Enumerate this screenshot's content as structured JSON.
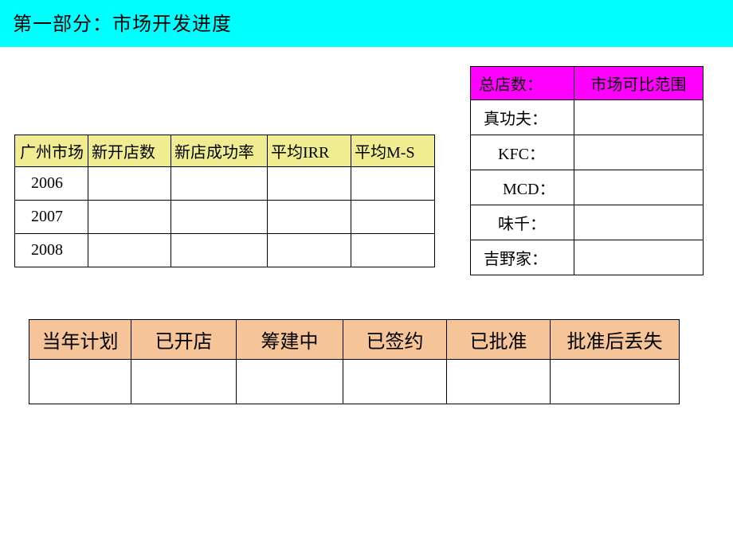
{
  "title": "第一部分：市场开发进度",
  "table1": {
    "headers": [
      "广州市场",
      "新开店数",
      "新店成功率",
      "平均IRR",
      "平均M-S"
    ],
    "rows": [
      {
        "year": "2006",
        "cells": [
          "",
          "",
          "",
          ""
        ]
      },
      {
        "year": "2007",
        "cells": [
          "",
          "",
          "",
          ""
        ]
      },
      {
        "year": "2008",
        "cells": [
          "",
          "",
          "",
          ""
        ]
      }
    ],
    "header_bg": "#f0ed91",
    "border_color": "#000000",
    "font_size": 20
  },
  "table2": {
    "headers": [
      "总店数：",
      "市场可比范围"
    ],
    "rows": [
      {
        "label": "真功夫：",
        "value": ""
      },
      {
        "label": "KFC：",
        "value": ""
      },
      {
        "label": "MCD：",
        "value": ""
      },
      {
        "label": "味千：",
        "value": ""
      },
      {
        "label": "吉野家：",
        "value": ""
      }
    ],
    "header_bg": "#ff00ff",
    "border_color": "#000000",
    "font_size": 20
  },
  "table3": {
    "headers": [
      "当年计划",
      "已开店",
      "筹建中",
      "已签约",
      "已批准",
      "批准后丢失"
    ],
    "rows": [
      {
        "cells": [
          "",
          "",
          "",
          "",
          "",
          ""
        ]
      }
    ],
    "header_bg": "#f5c498",
    "border_color": "#000000",
    "font_size": 24
  },
  "colors": {
    "title_bg": "#00ffff",
    "page_bg": "#ffffff",
    "text": "#000000"
  }
}
